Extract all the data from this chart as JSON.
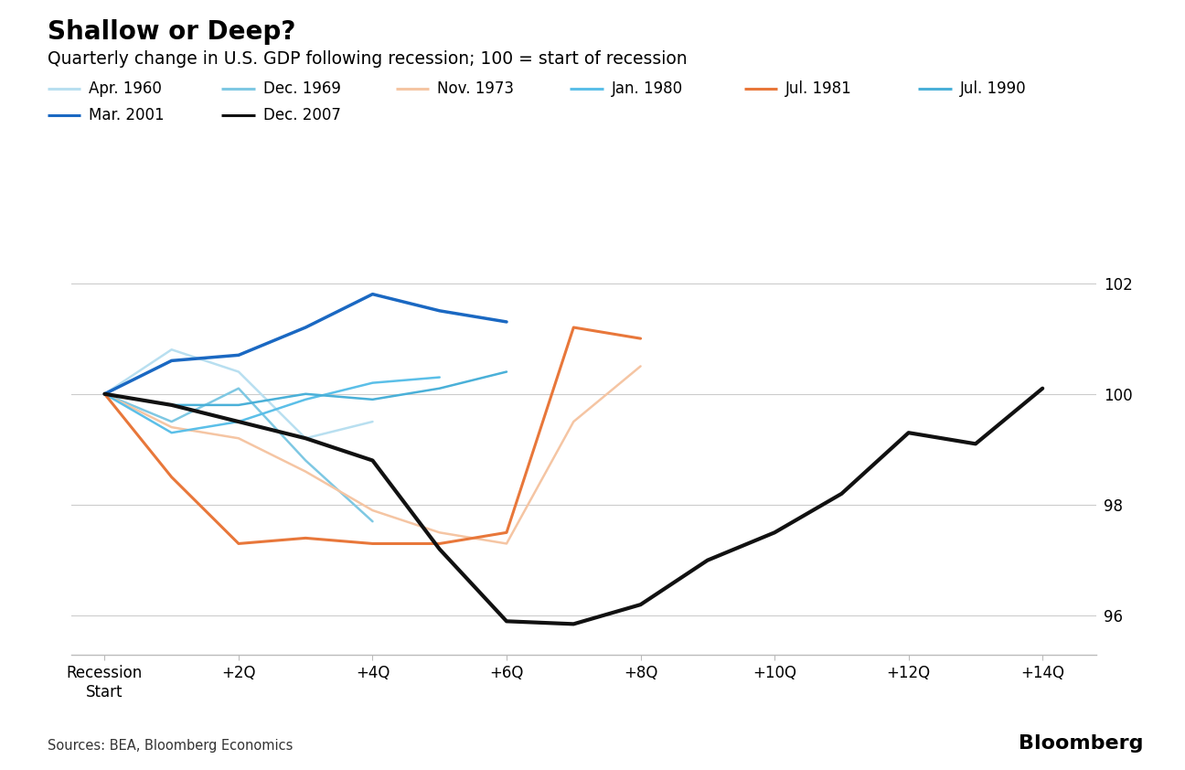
{
  "title_bold": "Shallow or Deep?",
  "subtitle": "Quarterly change in U.S. GDP following recession; 100 = start of recession",
  "source": "Sources: BEA, Bloomberg Economics",
  "brand": "Bloomberg",
  "x_ticks": [
    0,
    2,
    4,
    6,
    8,
    10,
    12,
    14
  ],
  "x_tick_labels": [
    "Recession\nStart",
    "+2Q",
    "+4Q",
    "+6Q",
    "+8Q",
    "+10Q",
    "+12Q",
    "+14Q"
  ],
  "y_ticks": [
    96,
    98,
    100,
    102
  ],
  "ylim": [
    95.3,
    102.8
  ],
  "xlim": [
    -0.5,
    14.8
  ],
  "series": [
    {
      "label": "Apr. 1960",
      "color": "#b8dff0",
      "linewidth": 1.8,
      "x": [
        0,
        1,
        2,
        3,
        4
      ],
      "y": [
        100,
        100.8,
        100.4,
        99.2,
        99.5
      ]
    },
    {
      "label": "Dec. 1969",
      "color": "#7ec8e3",
      "linewidth": 1.8,
      "x": [
        0,
        1,
        2,
        3,
        4
      ],
      "y": [
        100,
        99.5,
        100.1,
        98.8,
        97.7
      ]
    },
    {
      "label": "Nov. 1973",
      "color": "#f5c5a3",
      "linewidth": 1.8,
      "x": [
        0,
        1,
        2,
        3,
        4,
        5,
        6,
        7,
        8
      ],
      "y": [
        100,
        99.4,
        99.2,
        98.6,
        97.9,
        97.5,
        97.3,
        99.5,
        100.5
      ]
    },
    {
      "label": "Jan. 1980",
      "color": "#5bbfe8",
      "linewidth": 1.8,
      "x": [
        0,
        1,
        2,
        3,
        4,
        5
      ],
      "y": [
        100,
        99.3,
        99.5,
        99.9,
        100.2,
        100.3
      ]
    },
    {
      "label": "Jul. 1981",
      "color": "#e8773a",
      "linewidth": 2.2,
      "x": [
        0,
        1,
        2,
        3,
        4,
        5,
        6,
        7,
        8
      ],
      "y": [
        100,
        98.5,
        97.3,
        97.4,
        97.3,
        97.3,
        97.5,
        101.2,
        101.0
      ]
    },
    {
      "label": "Jul. 1990",
      "color": "#4ab0d8",
      "linewidth": 1.8,
      "x": [
        0,
        1,
        2,
        3,
        4,
        5,
        6
      ],
      "y": [
        100,
        99.8,
        99.8,
        100.0,
        99.9,
        100.1,
        100.4
      ]
    },
    {
      "label": "Mar. 2001",
      "color": "#1a68c2",
      "linewidth": 2.5,
      "x": [
        0,
        1,
        2,
        3,
        4,
        5,
        6
      ],
      "y": [
        100,
        100.6,
        100.7,
        101.2,
        101.8,
        101.5,
        101.3
      ]
    },
    {
      "label": "Dec. 2007",
      "color": "#111111",
      "linewidth": 3.0,
      "x": [
        0,
        1,
        2,
        3,
        4,
        5,
        6,
        7,
        8,
        9,
        10,
        11,
        12,
        13,
        14
      ],
      "y": [
        100,
        99.8,
        99.5,
        99.2,
        98.8,
        97.2,
        95.9,
        95.85,
        96.2,
        97.0,
        97.5,
        98.2,
        99.3,
        99.1,
        100.1
      ]
    }
  ],
  "legend_entries": [
    {
      "label": "Apr. 1960",
      "color": "#b8dff0"
    },
    {
      "label": "Dec. 1969",
      "color": "#7ec8e3"
    },
    {
      "label": "Nov. 1973",
      "color": "#f5c5a3"
    },
    {
      "label": "Jan. 1980",
      "color": "#5bbfe8"
    },
    {
      "label": "Jul. 1981",
      "color": "#e8773a"
    },
    {
      "label": "Jul. 1990",
      "color": "#4ab0d8"
    },
    {
      "label": "Mar. 2001",
      "color": "#1a68c2"
    },
    {
      "label": "Dec. 2007",
      "color": "#111111"
    }
  ],
  "background_color": "#ffffff",
  "grid_color": "#cccccc",
  "title_fontsize": 20,
  "subtitle_fontsize": 13.5,
  "tick_fontsize": 12,
  "legend_fontsize": 12,
  "source_fontsize": 10.5,
  "brand_fontsize": 16
}
